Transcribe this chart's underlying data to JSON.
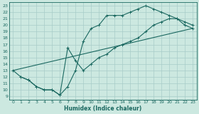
{
  "bg_color": "#cce8e0",
  "grid_color": "#a8ccc8",
  "line_color": "#1a6860",
  "xlabel": "Humidex (Indice chaleur)",
  "xlim": [
    -0.5,
    23.5
  ],
  "ylim": [
    8.5,
    23.5
  ],
  "yticks": [
    9,
    10,
    11,
    12,
    13,
    14,
    15,
    16,
    17,
    18,
    19,
    20,
    21,
    22,
    23
  ],
  "xticks": [
    0,
    1,
    2,
    3,
    4,
    5,
    6,
    7,
    8,
    9,
    10,
    11,
    12,
    13,
    14,
    15,
    16,
    17,
    18,
    19,
    20,
    21,
    22,
    23
  ],
  "line1_x": [
    0,
    1,
    2,
    3,
    4,
    5,
    6,
    7,
    8,
    9,
    10,
    11,
    12,
    13,
    14,
    15,
    16,
    17,
    18,
    19,
    20,
    21,
    22,
    23
  ],
  "line1_y": [
    13,
    12,
    11.5,
    10.5,
    10,
    10,
    9.2,
    10.5,
    13.0,
    17.5,
    19.5,
    20.0,
    21.5,
    21.5,
    21.5,
    22.0,
    22.5,
    23.0,
    22.5,
    22.0,
    21.5,
    21.0,
    20.0,
    19.5
  ],
  "line2_x": [
    1,
    2,
    3,
    4,
    5,
    6,
    7,
    8,
    9,
    10,
    11,
    12,
    13,
    14,
    15,
    16,
    17,
    18,
    19,
    20,
    21,
    22,
    23
  ],
  "line2_y": [
    12,
    11.5,
    10.5,
    10,
    10,
    9.2,
    16.5,
    14.5,
    13.0,
    14.0,
    15.0,
    15.5,
    16.5,
    17.0,
    17.5,
    18.0,
    19.0,
    20.0,
    20.5,
    21.0,
    21.0,
    20.5,
    20.0
  ],
  "line3_x": [
    0,
    23
  ],
  "line3_y": [
    13,
    19.5
  ]
}
